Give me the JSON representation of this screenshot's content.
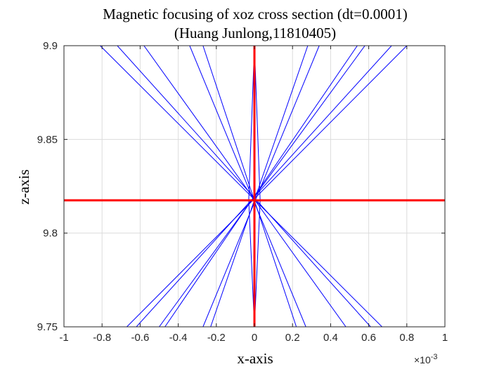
{
  "chart_data": {
    "type": "line",
    "title": "Magnetic focusing of xoz cross section (dt=0.0001)",
    "subtitle": "(Huang Junlong,11810405)",
    "xlabel": "x-axis",
    "ylabel": "z-axis",
    "xlim": [
      -0.001,
      0.001
    ],
    "ylim": [
      9.75,
      9.9
    ],
    "x_exponent_label": "×10",
    "x_exponent_power": "-3",
    "xticks": [
      -1,
      -0.8,
      -0.6,
      -0.4,
      -0.2,
      0,
      0.2,
      0.4,
      0.6,
      0.8,
      1
    ],
    "xtick_labels": [
      "-1",
      "-0.8",
      "-0.6",
      "-0.4",
      "-0.2",
      "0",
      "0.2",
      "0.4",
      "0.6",
      "0.8",
      "1"
    ],
    "yticks": [
      9.75,
      9.8,
      9.85,
      9.9
    ],
    "ytick_labels": [
      "9.75",
      "9.8",
      "9.85",
      "9.9"
    ],
    "grid": true,
    "focus_point": {
      "x": 0,
      "z": 9.8175
    },
    "series": [
      {
        "color": "#0000ff",
        "x": [
          -0.00067,
          0.0008
        ],
        "z": [
          9.75,
          9.9
        ]
      },
      {
        "color": "#0000ff",
        "x": [
          -0.00062,
          0.00072
        ],
        "z": [
          9.75,
          9.9
        ]
      },
      {
        "color": "#0000ff",
        "x": [
          -0.0005,
          0.00058
        ],
        "z": [
          9.75,
          9.9
        ]
      },
      {
        "color": "#0000ff",
        "x": [
          -0.00047,
          0.00054
        ],
        "z": [
          9.75,
          9.9
        ]
      },
      {
        "color": "#0000ff",
        "x": [
          -0.00027,
          0.00034
        ],
        "z": [
          9.75,
          9.9
        ]
      },
      {
        "color": "#0000ff",
        "x": [
          -0.00023,
          0.00028
        ],
        "z": [
          9.75,
          9.9
        ]
      },
      {
        "color": "#0000ff",
        "x": [
          0.00067,
          -0.00081
        ],
        "z": [
          9.75,
          9.9
        ]
      },
      {
        "color": "#0000ff",
        "x": [
          0.00061,
          -0.00072
        ],
        "z": [
          9.75,
          9.9
        ]
      },
      {
        "color": "#0000ff",
        "x": [
          0.00048,
          -0.00058
        ],
        "z": [
          9.75,
          9.9
        ]
      },
      {
        "color": "#0000ff",
        "x": [
          0.00027,
          -0.00034
        ],
        "z": [
          9.75,
          9.9
        ]
      },
      {
        "color": "#0000ff",
        "x": [
          0.00022,
          -0.00027
        ],
        "z": [
          9.75,
          9.9
        ]
      },
      {
        "color": "#0000ff",
        "x": [
          0.0,
          3e-05,
          0.0
        ],
        "z": [
          9.75,
          9.8175,
          9.9
        ]
      },
      {
        "color": "#0000ff",
        "x": [
          0.0,
          -3e-05,
          0.0
        ],
        "z": [
          9.75,
          9.8175,
          9.9
        ]
      },
      {
        "color": "#ff0000",
        "x": [
          -0.001,
          0.001
        ],
        "z": [
          9.8175,
          9.8175
        ]
      },
      {
        "color": "#ff0000",
        "x": [
          0.0,
          0.0
        ],
        "z": [
          9.75,
          9.9
        ]
      }
    ]
  }
}
